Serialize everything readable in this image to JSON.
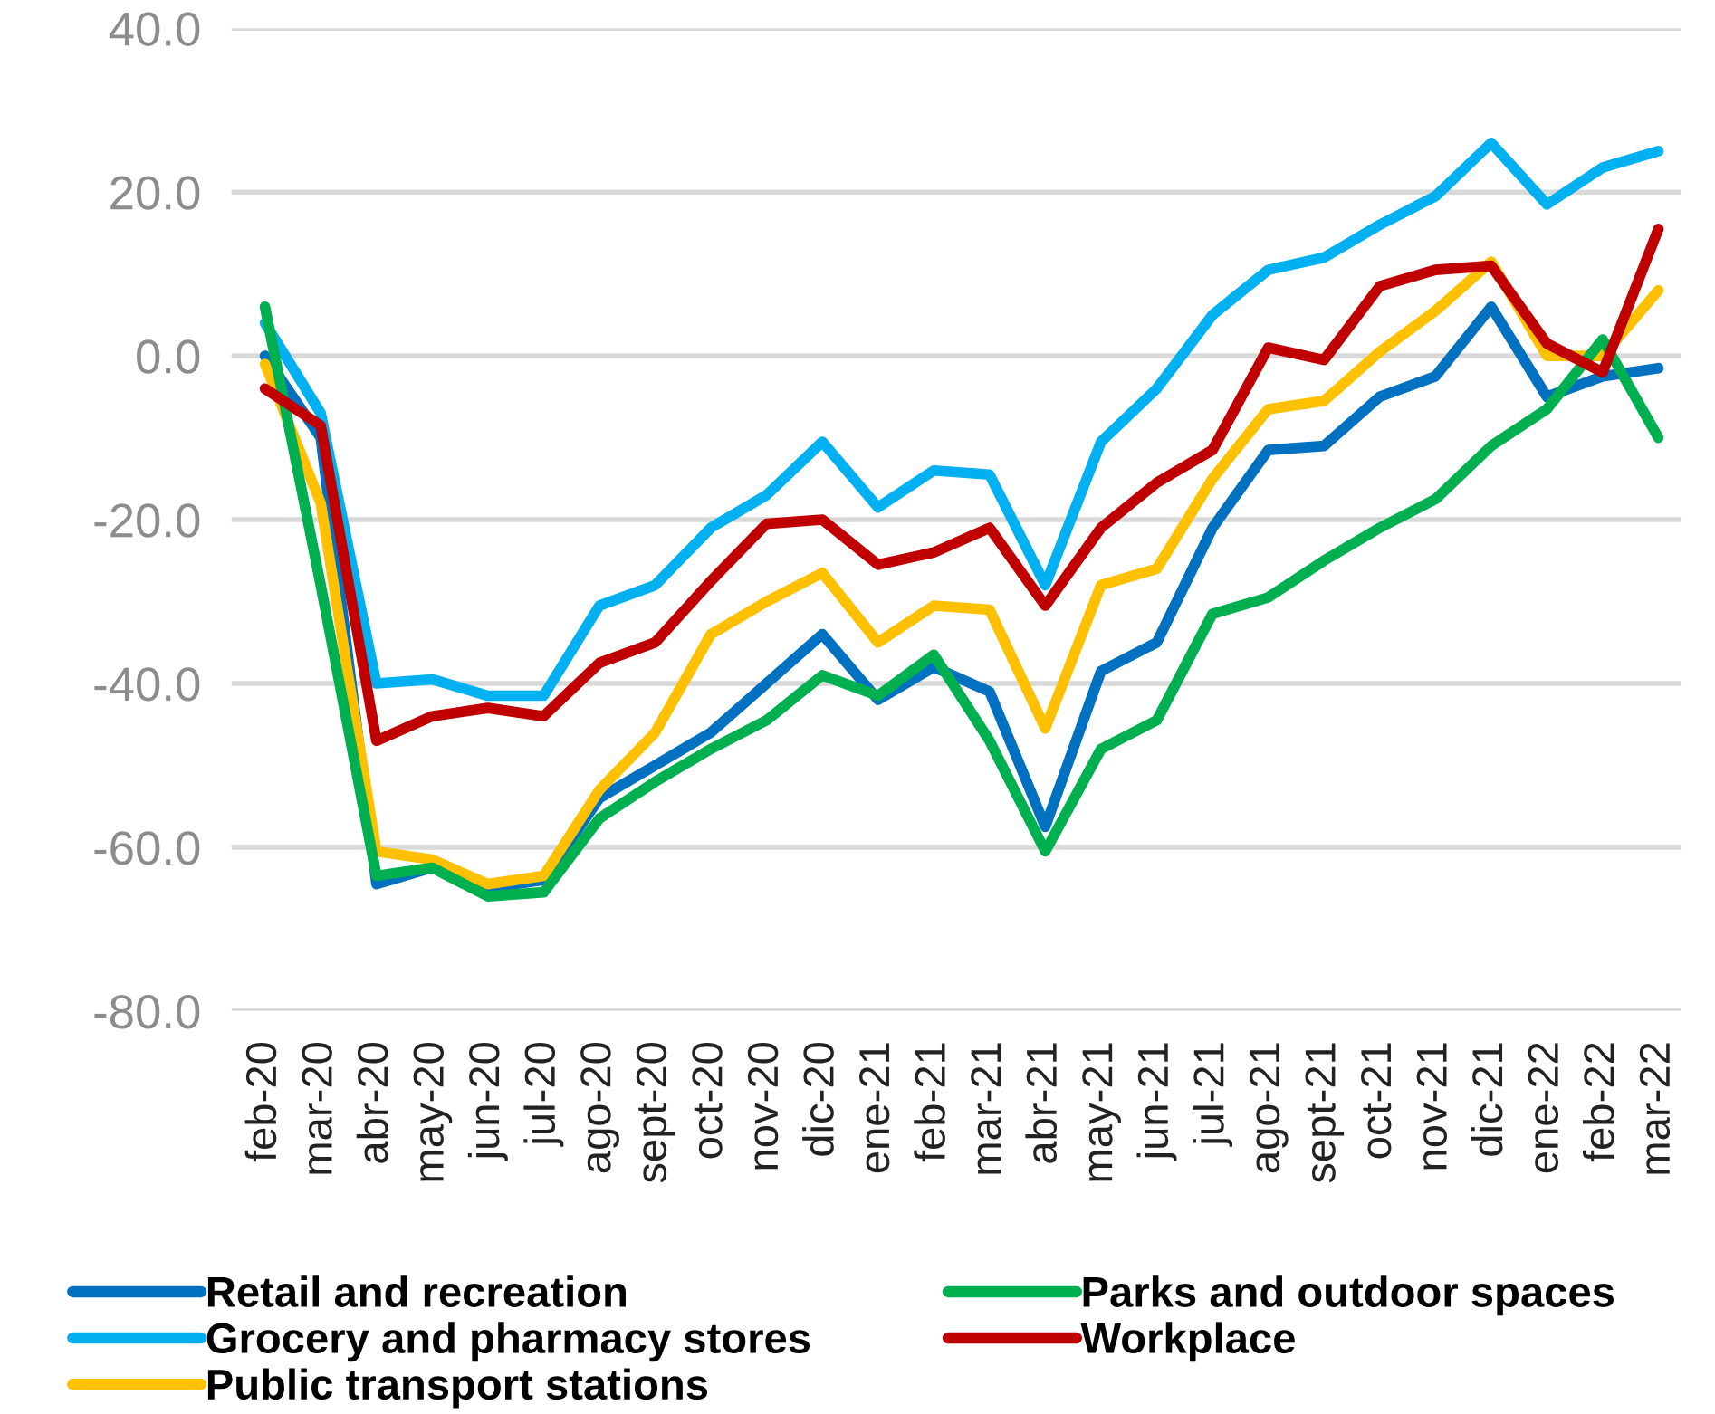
{
  "chart_data": {
    "type": "line",
    "categories": [
      "feb-20",
      "mar-20",
      "abr-20",
      "may-20",
      "jun-20",
      "jul-20",
      "ago-20",
      "sept-20",
      "oct-20",
      "nov-20",
      "dic-20",
      "ene-21",
      "feb-21",
      "mar-21",
      "abr-21",
      "may-21",
      "jun-21",
      "jul-21",
      "ago-21",
      "sept-21",
      "oct-21",
      "nov-21",
      "dic-21",
      "ene-22",
      "feb-22",
      "mar-22"
    ],
    "series": [
      {
        "name": "Retail and recreation",
        "color": "#0070c0",
        "values": [
          0,
          -10,
          -64.5,
          -62.5,
          -65,
          -64,
          -54,
          -50,
          -46,
          -40,
          -34,
          -42,
          -38,
          -41,
          -57.5,
          -38.5,
          -35,
          -21,
          -11.5,
          -11,
          -5,
          -2.5,
          6,
          -5,
          -2.5,
          -1.5
        ]
      },
      {
        "name": "Grocery and pharmacy stores",
        "color": "#00b0f0",
        "values": [
          4,
          -7,
          -40,
          -39.5,
          -41.5,
          -41.5,
          -30.5,
          -28,
          -21,
          -17,
          -10.5,
          -18.5,
          -14,
          -14.5,
          -28,
          -10.5,
          -4,
          5,
          10.5,
          12,
          16,
          19.5,
          26,
          18.5,
          23,
          25
        ]
      },
      {
        "name": "Public transport stations",
        "color": "#ffc000",
        "values": [
          -1,
          -18,
          -60.5,
          -61.5,
          -64.5,
          -63.5,
          -53,
          -46,
          -34,
          -30,
          -26.5,
          -35,
          -30.5,
          -31,
          -45.5,
          -28,
          -26,
          -15,
          -6.5,
          -5.5,
          0.5,
          5.5,
          11.5,
          0,
          0,
          8
        ]
      },
      {
        "name": "Parks and outdoor spaces",
        "color": "#00b050",
        "values": [
          6,
          -28,
          -63.5,
          -62.5,
          -66,
          -65.5,
          -56.5,
          -52,
          -48,
          -44.5,
          -39,
          -41.5,
          -36.5,
          -47,
          -60.5,
          -48,
          -44.5,
          -31.5,
          -29.5,
          -25,
          -21,
          -17.5,
          -11,
          -6.5,
          2,
          -10
        ]
      },
      {
        "name": "Workplace",
        "color": "#c00000",
        "values": [
          -4,
          -8.5,
          -47,
          -44,
          -43,
          -44,
          -37.5,
          -35,
          -27.5,
          -20.5,
          -20,
          -25.5,
          -24,
          -21,
          -30.5,
          -21,
          -15.5,
          -11.5,
          1,
          -0.5,
          8.5,
          10.5,
          11,
          1.5,
          -2,
          15.5
        ]
      }
    ],
    "ylim": [
      -80,
      40
    ],
    "yticks": [
      {
        "value": -80,
        "label": "-80.0"
      },
      {
        "value": -60,
        "label": "-60.0"
      },
      {
        "value": -40,
        "label": "-40.0"
      },
      {
        "value": -20,
        "label": "-20.0"
      },
      {
        "value": 0,
        "label": "0.0"
      },
      {
        "value": 20,
        "label": "20.0"
      },
      {
        "value": 40,
        "label": "40.0"
      }
    ],
    "grid": "y",
    "legend": "bottom",
    "marker": "none",
    "line_style": "solid"
  }
}
